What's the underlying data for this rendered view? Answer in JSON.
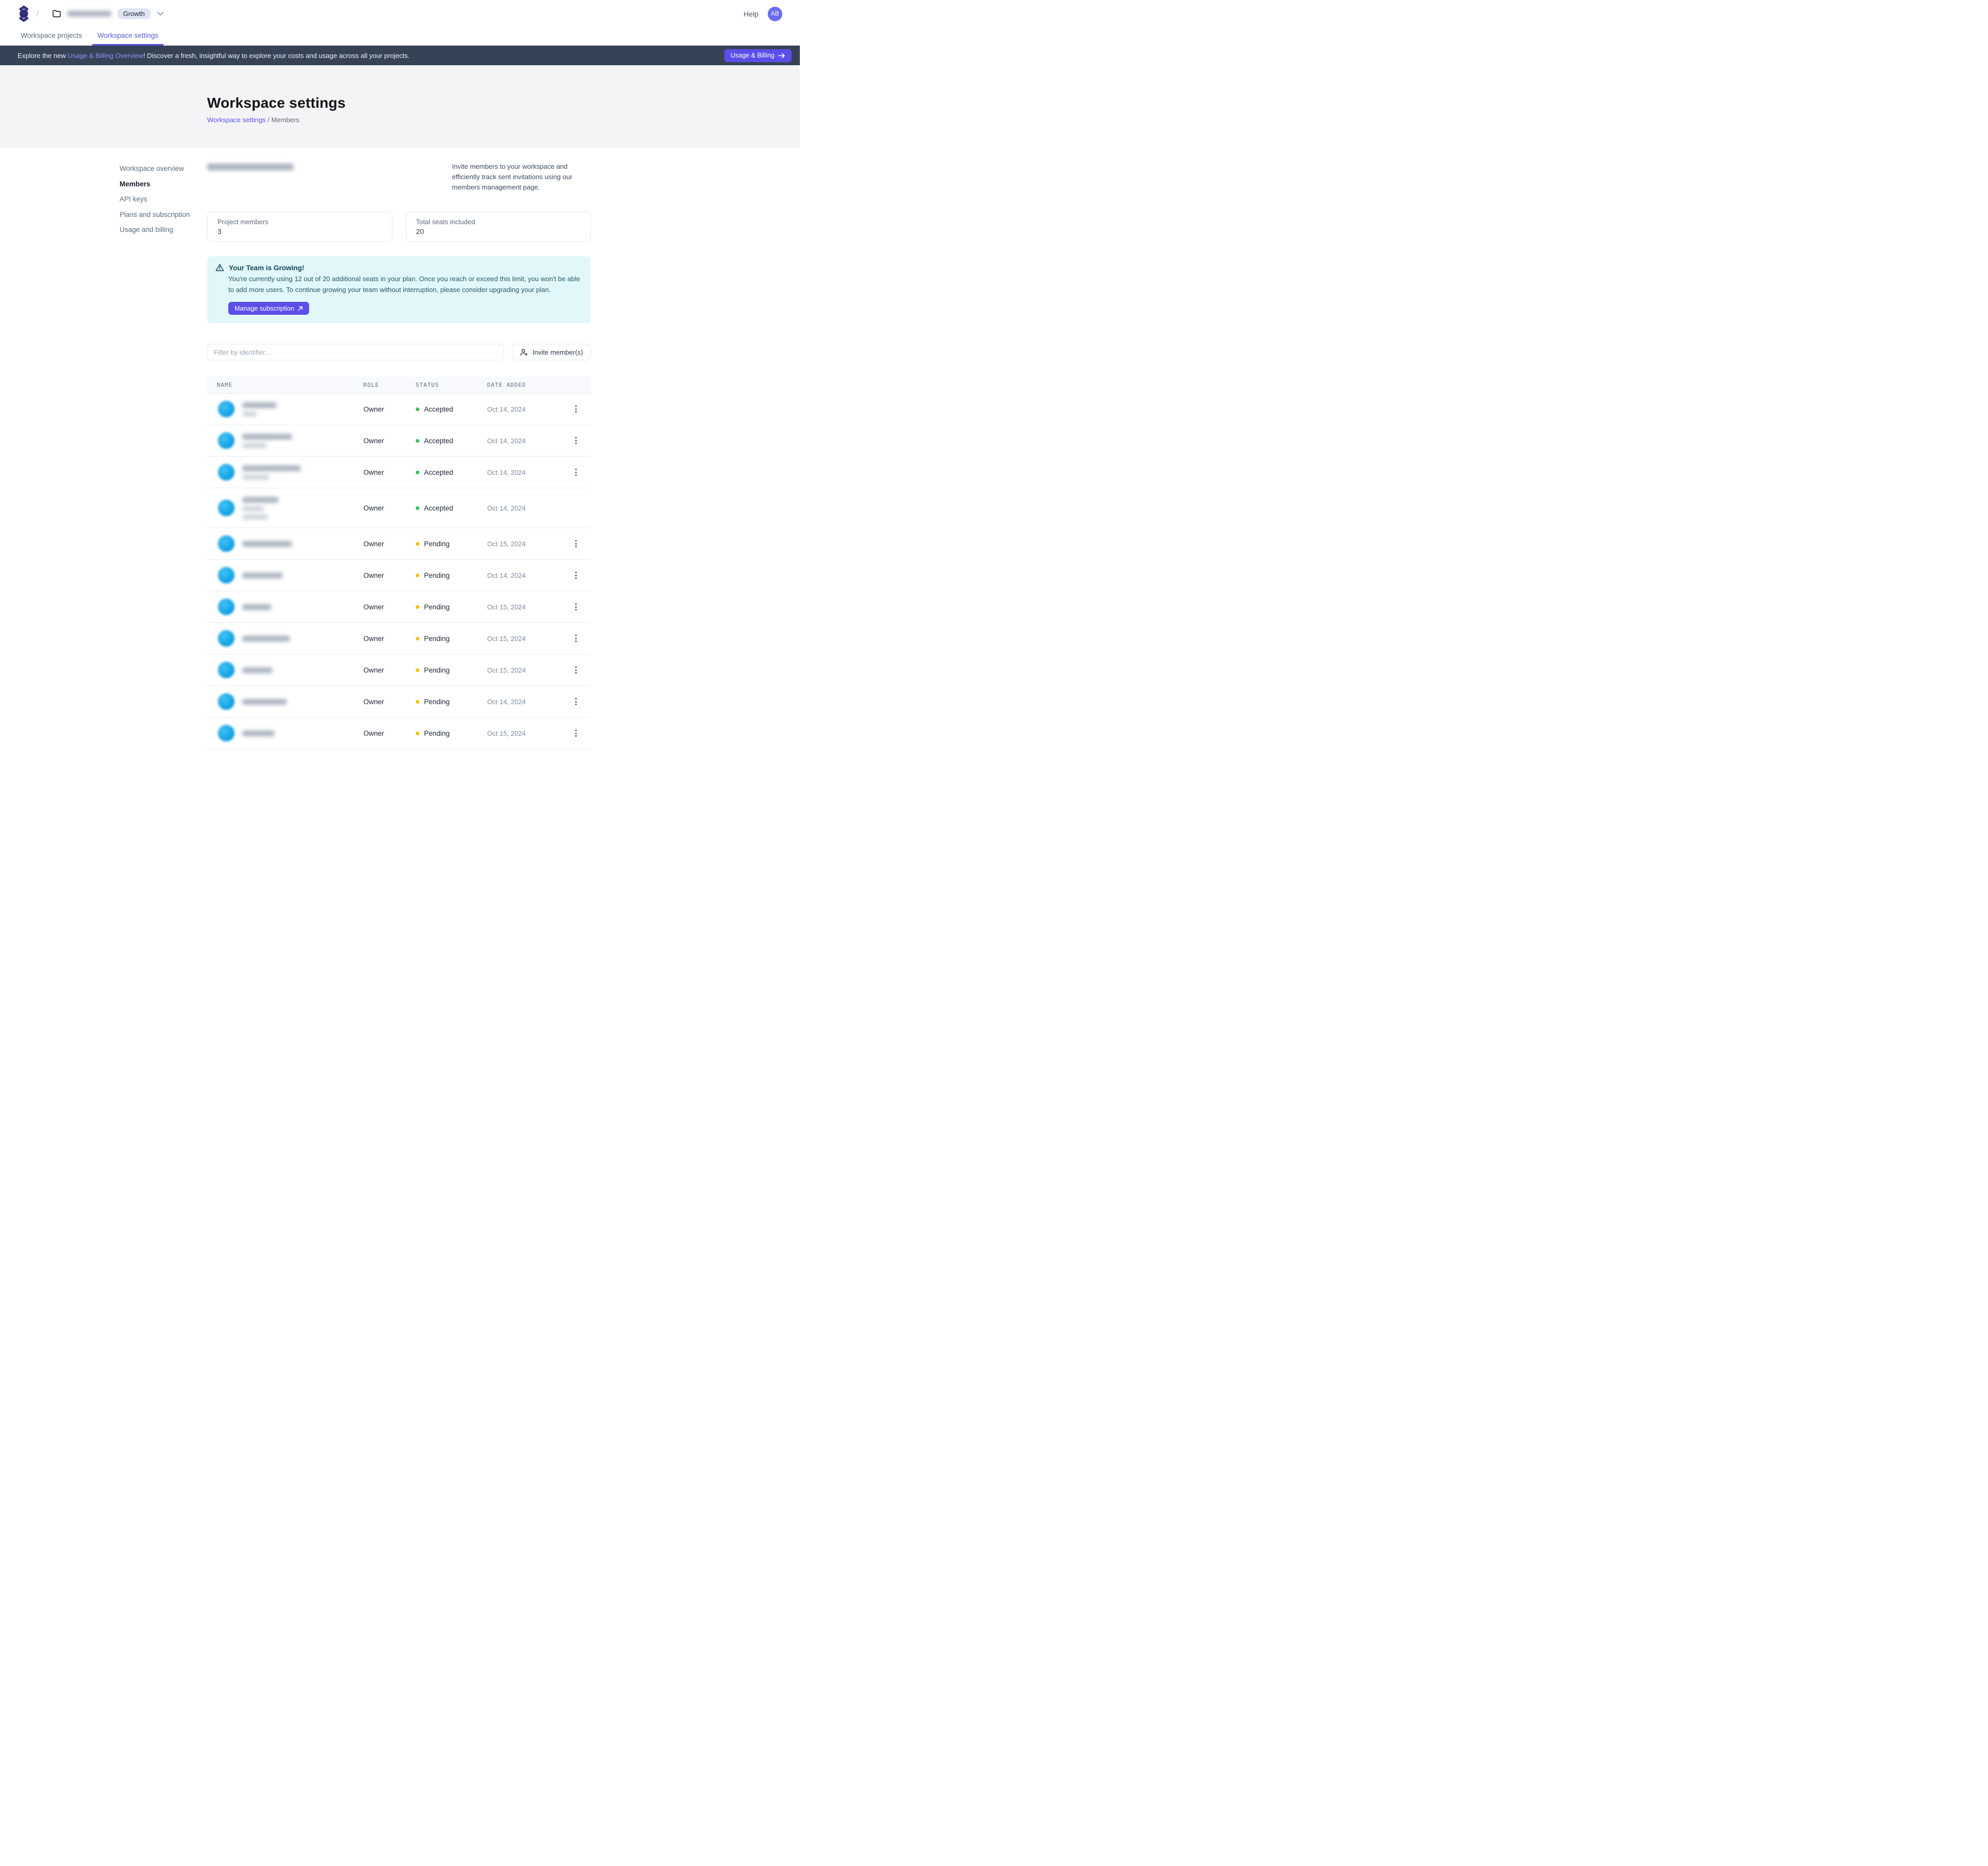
{
  "topbar": {
    "breadcrumb_separator": "/",
    "workspace_name_redacted": true,
    "workspace_name_mask_width": 85,
    "plan_badge": "Growth",
    "help_label": "Help",
    "avatar_initials": "AB"
  },
  "tabs": [
    {
      "label": "Workspace projects",
      "active": false
    },
    {
      "label": "Workspace settings",
      "active": true
    }
  ],
  "promo_banner": {
    "text_before": "Explore the new ",
    "link_text": "Usage & Billing Overview",
    "text_after": "! Discover a fresh, insightful way to explore your costs and usage across all your projects.",
    "button_label": "Usage & Billing"
  },
  "page_header": {
    "title": "Workspace settings",
    "breadcrumb_link": "Workspace settings",
    "breadcrumb_separator": " / ",
    "breadcrumb_current": "Members"
  },
  "sidebar": {
    "items": [
      {
        "label": "Workspace overview",
        "active": false
      },
      {
        "label": "Members",
        "active": true
      },
      {
        "label": "API keys",
        "active": false
      },
      {
        "label": "Plans and subscription",
        "active": false
      },
      {
        "label": "Usage and billing",
        "active": false
      }
    ]
  },
  "members_section": {
    "heading_redacted": true,
    "heading_mask_width": 167,
    "description": "Invite members to your workspace and efficiently track sent invitations using our members management page.",
    "stats": [
      {
        "label": "Project members",
        "value": "3"
      },
      {
        "label": "Total seats included",
        "value": "20"
      }
    ],
    "alert": {
      "title": "Your Team is Growing!",
      "body": "You're currently using 12 out of 20 additional seats in your plan. Once you reach or exceed this limit, you won't be able to add more users. To continue growing your team without interruption, please consider upgrading your plan.",
      "button_label": "Manage subscription"
    },
    "filter_placeholder": "Filter by identifier...",
    "invite_button_label": "Invite member(s)"
  },
  "table": {
    "columns": [
      "NAME",
      "ROLE",
      "STATUS",
      "DATE ADDED"
    ],
    "status_colors": {
      "Accepted": "#36c05f",
      "Pending": "#f2c200"
    },
    "rows": [
      {
        "identity_redacted": true,
        "email_mask_width": 66,
        "sub_mask_widths": [
          28
        ],
        "role": "Owner",
        "status": "Accepted",
        "date_added": "Oct 14, 2024",
        "has_menu": true
      },
      {
        "identity_redacted": true,
        "email_mask_width": 96,
        "sub_mask_widths": [
          47
        ],
        "role": "Owner",
        "status": "Accepted",
        "date_added": "Oct 14, 2024",
        "has_menu": true
      },
      {
        "identity_redacted": true,
        "email_mask_width": 113,
        "sub_mask_widths": [
          52
        ],
        "role": "Owner",
        "status": "Accepted",
        "date_added": "Oct 14, 2024",
        "has_menu": true
      },
      {
        "identity_redacted": true,
        "email_mask_width": 70,
        "sub_mask_widths": [
          42,
          50
        ],
        "role": "Owner",
        "status": "Accepted",
        "date_added": "Oct 14, 2024",
        "has_menu": false
      },
      {
        "identity_redacted": true,
        "email_mask_width": 96,
        "sub_mask_widths": [],
        "role": "Owner",
        "status": "Pending",
        "date_added": "Oct 15, 2024",
        "has_menu": true
      },
      {
        "identity_redacted": true,
        "email_mask_width": 78,
        "sub_mask_widths": [],
        "role": "Owner",
        "status": "Pending",
        "date_added": "Oct 14, 2024",
        "has_menu": true
      },
      {
        "identity_redacted": true,
        "email_mask_width": 56,
        "sub_mask_widths": [],
        "role": "Owner",
        "status": "Pending",
        "date_added": "Oct 15, 2024",
        "has_menu": true
      },
      {
        "identity_redacted": true,
        "email_mask_width": 92,
        "sub_mask_widths": [],
        "role": "Owner",
        "status": "Pending",
        "date_added": "Oct 15, 2024",
        "has_menu": true
      },
      {
        "identity_redacted": true,
        "email_mask_width": 58,
        "sub_mask_widths": [],
        "role": "Owner",
        "status": "Pending",
        "date_added": "Oct 15, 2024",
        "has_menu": true
      },
      {
        "identity_redacted": true,
        "email_mask_width": 86,
        "sub_mask_widths": [],
        "role": "Owner",
        "status": "Pending",
        "date_added": "Oct 14, 2024",
        "has_menu": true
      },
      {
        "identity_redacted": true,
        "email_mask_width": 62,
        "sub_mask_widths": [],
        "role": "Owner",
        "status": "Pending",
        "date_added": "Oct 15, 2024",
        "has_menu": true
      }
    ]
  },
  "colors": {
    "accent_indigo": "#5b4ee9",
    "banner_bg": "#364357",
    "alert_bg": "#e1f7f9",
    "header_bg": "#f4f4f6",
    "status_accepted": "#36c05f",
    "status_pending": "#f2c200"
  }
}
